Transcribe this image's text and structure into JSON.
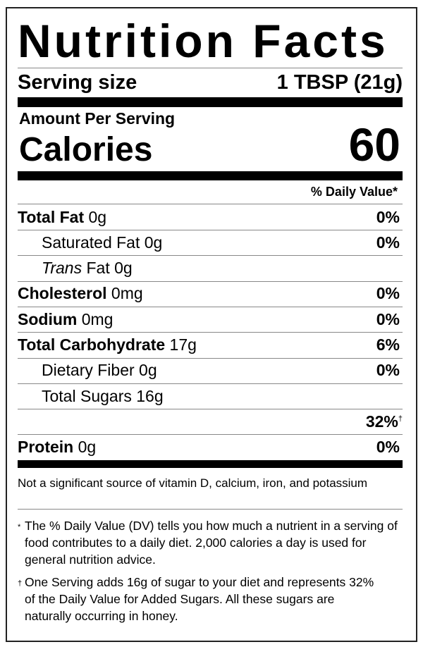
{
  "title": "Nutrition Facts",
  "serving": {
    "label": "Serving size",
    "value": "1 TBSP (21g)"
  },
  "amount_per_serving": "Amount Per Serving",
  "calories": {
    "label": "Calories",
    "value": "60"
  },
  "daily_value_header": "% Daily Value*",
  "nutrients": [
    {
      "name": "Total Fat",
      "amount": "0g",
      "dv": "0%"
    },
    {
      "name": "Saturated Fat",
      "amount": "0g",
      "dv": "0%"
    },
    {
      "name": "Trans",
      "suffix": "Fat",
      "amount": "0g",
      "dv": ""
    },
    {
      "name": "Cholesterol",
      "amount": "0mg",
      "dv": "0%"
    },
    {
      "name": "Sodium",
      "amount": "0mg",
      "dv": "0%"
    },
    {
      "name": "Total Carbohydrate",
      "amount": "17g",
      "dv": "6%"
    },
    {
      "name": "Dietary Fiber",
      "amount": "0g",
      "dv": "0%"
    },
    {
      "name": "Total Sugars",
      "amount": "16g",
      "dv": ""
    },
    {
      "name": "",
      "amount": "",
      "dv": "32%",
      "dagger": "†"
    },
    {
      "name": "Protein",
      "amount": "0g",
      "dv": "0%"
    }
  ],
  "micronutrient_note": "Not a significant source of vitamin D, calcium, iron, and potassium",
  "footnotes": [
    {
      "mark": "*",
      "text": "The % Daily Value (DV) tells you how much a nutrient in a serving of food contributes to a daily diet. 2,000 calories a day is used for general nutrition advice."
    },
    {
      "mark": "†",
      "text": "One Serving adds 16g of sugar to your diet and represents 32% of the Daily Value for Added Sugars. All these sugars are naturally occurring in honey."
    }
  ]
}
